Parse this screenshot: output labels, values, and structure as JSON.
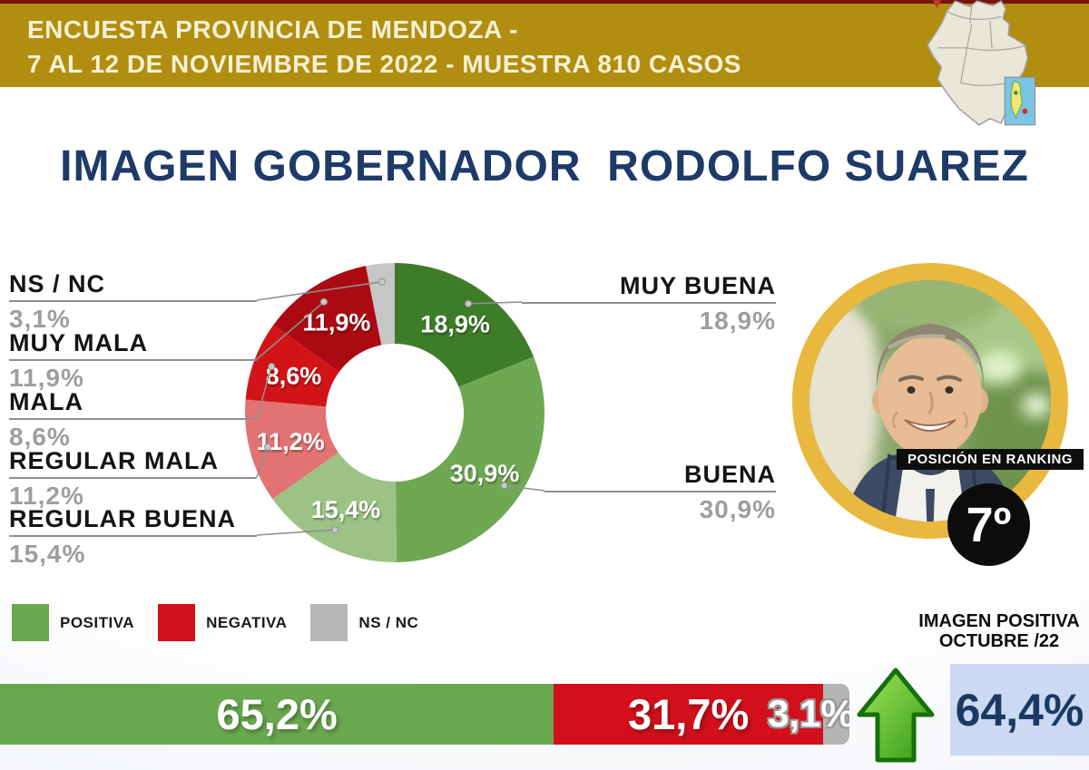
{
  "header": {
    "line1": "ENCUESTA PROVINCIA DE MENDOZA -",
    "line2": "7 AL 12 DE NOVIEMBRE DE 2022 - MUESTRA 810 CASOS"
  },
  "title": "IMAGEN GOBERNADOR  RODOLFO SUAREZ",
  "chart_data": [
    {
      "type": "pie",
      "subtype": "donut",
      "title": "IMAGEN GOBERNADOR RODOLFO SUAREZ",
      "units": "%",
      "segments": [
        {
          "label": "MUY BUENA",
          "value": 18.9,
          "display": "18,9%",
          "color": "#3e7d28",
          "group": "positiva",
          "show_inner_label": true
        },
        {
          "label": "BUENA",
          "value": 30.9,
          "display": "30,9%",
          "color": "#6fa853",
          "group": "positiva",
          "show_inner_label": true
        },
        {
          "label": "REGULAR BUENA",
          "value": 15.4,
          "display": "15,4%",
          "color": "#9cc385",
          "group": "positiva",
          "show_inner_label": true
        },
        {
          "label": "REGULAR MALA",
          "value": 11.2,
          "display": "11,2%",
          "color": "#e37373",
          "group": "negativa",
          "show_inner_label": true
        },
        {
          "label": "MALA",
          "value": 8.6,
          "display": "8,6%",
          "color": "#d21418",
          "group": "negativa",
          "show_inner_label": true
        },
        {
          "label": "MUY MALA",
          "value": 11.9,
          "display": "11,9%",
          "color": "#ac0a12",
          "group": "negativa",
          "show_inner_label": true
        },
        {
          "label": "NS / NC",
          "value": 3.1,
          "display": "3,1%",
          "color": "#c6c6c6",
          "group": "ns_nc",
          "show_inner_label": false
        }
      ]
    },
    {
      "type": "bar",
      "subtype": "stacked-horizontal",
      "units": "%",
      "segments": [
        {
          "label": "POSITIVA",
          "value": 65.2,
          "display": "65,2%",
          "color": "#6aa84f"
        },
        {
          "label": "NEGATIVA",
          "value": 31.7,
          "display": "31,7%",
          "color": "#d1101b"
        },
        {
          "label": "NS / NC",
          "value": 3.1,
          "display": "3,1%",
          "color": "#b5b5b5"
        }
      ]
    }
  ],
  "callouts": {
    "left": [
      {
        "label": "NS / NC",
        "pct": "3,1%"
      },
      {
        "label": "MUY MALA",
        "pct": "11,9%"
      },
      {
        "label": "MALA",
        "pct": "8,6%"
      },
      {
        "label": "REGULAR MALA",
        "pct": "11,2%"
      },
      {
        "label": "REGULAR BUENA",
        "pct": "15,4%"
      }
    ],
    "right": [
      {
        "label": "MUY BUENA",
        "pct": "18,9%"
      },
      {
        "label": "BUENA",
        "pct": "30,9%"
      }
    ]
  },
  "legend": [
    {
      "label": "POSITIVA",
      "color": "#6aa84f"
    },
    {
      "label": "NEGATIVA",
      "color": "#d0111b"
    },
    {
      "label": "NS / NC",
      "color": "#b7b7b7"
    }
  ],
  "ranking": {
    "caption": "POSICIÓN EN RANKING",
    "value": "7º"
  },
  "previous": {
    "heading_line1": "IMAGEN POSITIVA",
    "heading_line2": "OCTUBRE /22",
    "value": "64,4%",
    "trend": "up",
    "trend_color": "#3aa616",
    "box_color": "#ccd9f2"
  },
  "colors": {
    "header_gold": "#b18e10",
    "top_strip_red": "#7a140c",
    "title_navy": "#1e3a68"
  }
}
